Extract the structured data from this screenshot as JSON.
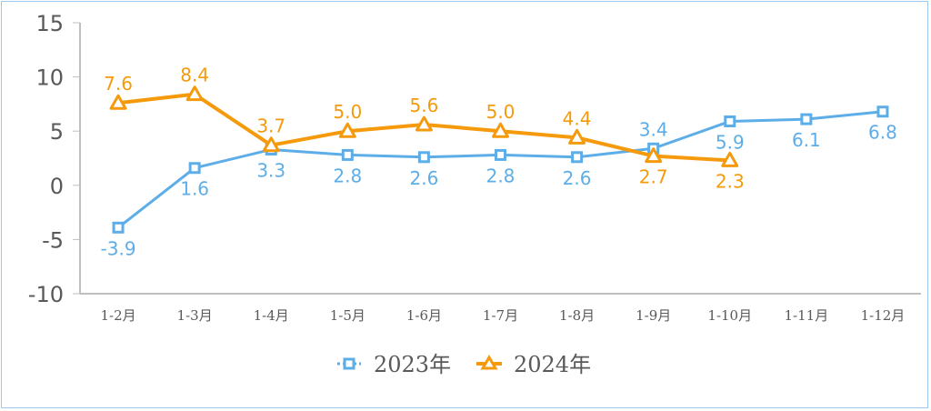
{
  "chart_data": {
    "type": "line",
    "title": "",
    "xlabel": "",
    "ylabel": "",
    "ylim": [
      -10,
      15
    ],
    "yticks": [
      "15",
      "10",
      "5",
      "0",
      "-5",
      "-10"
    ],
    "grid": false,
    "legend_position": "bottom",
    "categories": [
      "1-2月",
      "1-3月",
      "1-4月",
      "1-5月",
      "1-6月",
      "1-7月",
      "1-8月",
      "1-9月",
      "1-10月",
      "1-11月",
      "1-12月"
    ],
    "series": [
      {
        "name": "2023年",
        "color": "#5dade8",
        "marker": "square",
        "values": [
          -3.9,
          1.6,
          3.3,
          2.8,
          2.6,
          2.8,
          2.6,
          3.4,
          5.9,
          6.1,
          6.8
        ],
        "labels": [
          "-3.9",
          "1.6",
          "3.3",
          "2.8",
          "2.6",
          "2.8",
          "2.6",
          "3.4",
          "5.9",
          "6.1",
          "6.8"
        ]
      },
      {
        "name": "2024年",
        "color": "#f59a0c",
        "marker": "triangle",
        "values": [
          7.6,
          8.4,
          3.7,
          5.0,
          5.6,
          5.0,
          4.4,
          2.7,
          2.3,
          null,
          null
        ],
        "labels": [
          "7.6",
          "8.4",
          "3.7",
          "5.0",
          "5.6",
          "5.0",
          "4.4",
          "2.7",
          "2.3",
          null,
          null
        ]
      }
    ]
  }
}
